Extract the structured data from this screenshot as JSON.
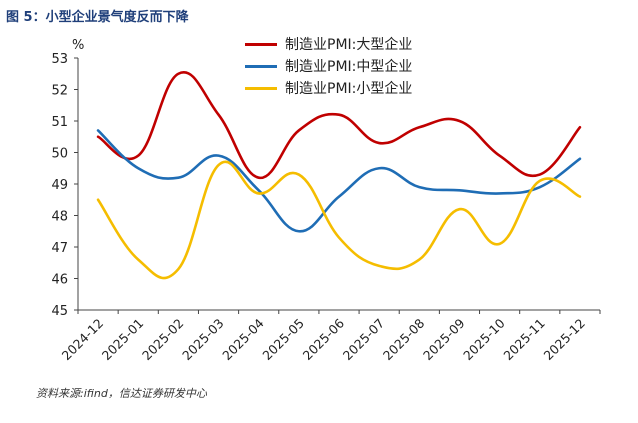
{
  "figure": {
    "title": "图 5：小型企业景气度反而下降",
    "source": "资料来源:ifind，信达证券研发中心"
  },
  "chart_data": {
    "type": "line",
    "ylabel": "%",
    "ylim": [
      45,
      53
    ],
    "yticks": [
      45,
      46,
      47,
      48,
      49,
      50,
      51,
      52,
      53
    ],
    "categories": [
      "2024-12",
      "2025-01",
      "2025-02",
      "2025-03",
      "2025-04",
      "2025-05",
      "2025-06",
      "2025-07",
      "2025-08",
      "2025-09",
      "2025-10",
      "2025-11",
      "2025-12"
    ],
    "grid": false,
    "legend_position": "top-center",
    "series": [
      {
        "name": "制造业PMI:大型企业",
        "color": "#c00000",
        "values": [
          50.5,
          49.9,
          52.5,
          51.2,
          49.2,
          50.7,
          51.2,
          50.3,
          50.8,
          51.0,
          49.9,
          49.3,
          50.8
        ]
      },
      {
        "name": "制造业PMI:中型企业",
        "color": "#1f6db5",
        "values": [
          50.7,
          49.5,
          49.2,
          49.9,
          48.8,
          47.5,
          48.6,
          49.5,
          48.9,
          48.8,
          48.7,
          48.9,
          49.8
        ]
      },
      {
        "name": "制造业PMI:小型企业",
        "color": "#f5bd00",
        "values": [
          48.5,
          46.6,
          46.3,
          49.6,
          48.7,
          49.3,
          47.3,
          46.4,
          46.6,
          48.2,
          47.1,
          49.1,
          48.6
        ]
      }
    ]
  }
}
